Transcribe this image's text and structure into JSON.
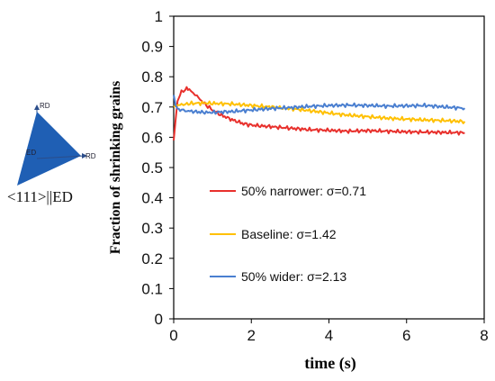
{
  "inset": {
    "top_axis_label": "RD",
    "right_axis_label": "RD",
    "center_label": "ED",
    "caption": "<111>||ED",
    "fill_color": "#1f5fb4"
  },
  "chart_data": {
    "type": "line",
    "title": "",
    "xlabel": "time (s)",
    "ylabel": "Fraction of shrinking grains",
    "xlim": [
      0,
      8
    ],
    "ylim": [
      0,
      1
    ],
    "xticks": [
      0,
      2,
      4,
      6,
      8
    ],
    "yticks": [
      0,
      0.1,
      0.2,
      0.3,
      0.4,
      0.5,
      0.6,
      0.7,
      0.8,
      0.9,
      1
    ],
    "xtick_labels": [
      "0",
      "2",
      "4",
      "6",
      "8"
    ],
    "ytick_labels": [
      "0",
      "0.1",
      "0.2",
      "0.3",
      "0.4",
      "0.5",
      "0.6",
      "0.7",
      "0.8",
      "0.9",
      "1"
    ],
    "grid": false,
    "legend_position": "inside-lower-left",
    "series": [
      {
        "name": "50% narrower: σ=0.71",
        "color": "#e8302c",
        "x": [
          0,
          0.05,
          0.1,
          0.2,
          0.3,
          0.4,
          0.5,
          0.6,
          0.8,
          1.0,
          1.2,
          1.5,
          1.8,
          2.0,
          2.5,
          3.0,
          3.5,
          4.0,
          4.5,
          5.0,
          5.5,
          6.0,
          6.5,
          7.0,
          7.5
        ],
        "y": [
          0.59,
          0.66,
          0.72,
          0.75,
          0.76,
          0.758,
          0.748,
          0.735,
          0.71,
          0.69,
          0.675,
          0.658,
          0.645,
          0.64,
          0.635,
          0.63,
          0.625,
          0.623,
          0.62,
          0.622,
          0.62,
          0.618,
          0.617,
          0.616,
          0.615
        ]
      },
      {
        "name": "Baseline: σ=1.42",
        "color": "#ffc000",
        "x": [
          0,
          0.05,
          0.1,
          0.2,
          0.3,
          0.5,
          0.8,
          1.0,
          1.5,
          2.0,
          2.5,
          3.0,
          3.5,
          4.0,
          4.5,
          5.0,
          5.5,
          6.0,
          6.5,
          7.0,
          7.5
        ],
        "y": [
          0.7,
          0.705,
          0.706,
          0.708,
          0.71,
          0.712,
          0.713,
          0.712,
          0.71,
          0.705,
          0.7,
          0.695,
          0.688,
          0.68,
          0.673,
          0.668,
          0.663,
          0.66,
          0.657,
          0.655,
          0.652
        ]
      },
      {
        "name": "50% wider: σ=2.13",
        "color": "#4a7fd0",
        "x": [
          0,
          0.05,
          0.1,
          0.2,
          0.3,
          0.5,
          0.8,
          1.0,
          1.5,
          2.0,
          2.5,
          3.0,
          3.5,
          4.0,
          4.5,
          5.0,
          5.5,
          6.0,
          6.5,
          7.0,
          7.5
        ],
        "y": [
          0.74,
          0.705,
          0.695,
          0.69,
          0.688,
          0.685,
          0.682,
          0.682,
          0.685,
          0.69,
          0.695,
          0.698,
          0.702,
          0.705,
          0.706,
          0.705,
          0.703,
          0.704,
          0.705,
          0.7,
          0.696
        ]
      }
    ]
  }
}
